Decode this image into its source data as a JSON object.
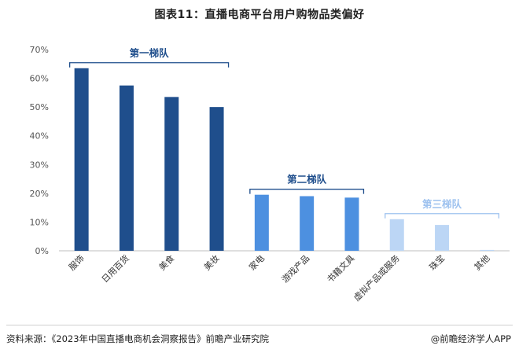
{
  "page": {
    "title": "图表11：直播电商平台用户购物品类偏好",
    "source": "资料来源：《2023年中国直播电商机会洞察报告》前瞻产业研究院",
    "credit": "@前瞻经济学人APP"
  },
  "chart_data": {
    "type": "bar",
    "title": "图表11：直播电商平台用户购物品类偏好",
    "categories": [
      "服饰",
      "日用百货",
      "美食",
      "美妆",
      "家电",
      "游戏产品",
      "书籍文具",
      "虚拟产品或服务",
      "珠宝",
      "其他"
    ],
    "values": [
      63.5,
      57.5,
      53.5,
      50,
      19.5,
      19,
      18.5,
      11,
      9,
      0.3
    ],
    "ylim": [
      0,
      70
    ],
    "yticks": [
      0,
      10,
      20,
      30,
      40,
      50,
      60,
      70
    ],
    "ytick_labels": [
      "0%",
      "10%",
      "20%",
      "30%",
      "40%",
      "50%",
      "60%",
      "70%"
    ],
    "grid": false,
    "colors": [
      "#1f4e8c",
      "#1f4e8c",
      "#1f4e8c",
      "#1f4e8c",
      "#4d90e0",
      "#4d90e0",
      "#4d90e0",
      "#bcd6f5",
      "#bcd6f5",
      "#bcd6f5"
    ],
    "annotations": [
      {
        "text": "第一梯队",
        "from": 0,
        "to": 3,
        "color": "#1f4e8c"
      },
      {
        "text": "第二梯队",
        "from": 4,
        "to": 6,
        "color": "#1f4e8c"
      },
      {
        "text": "第三梯队",
        "from": 7,
        "to": 9,
        "color": "#9ec2ef"
      }
    ]
  }
}
